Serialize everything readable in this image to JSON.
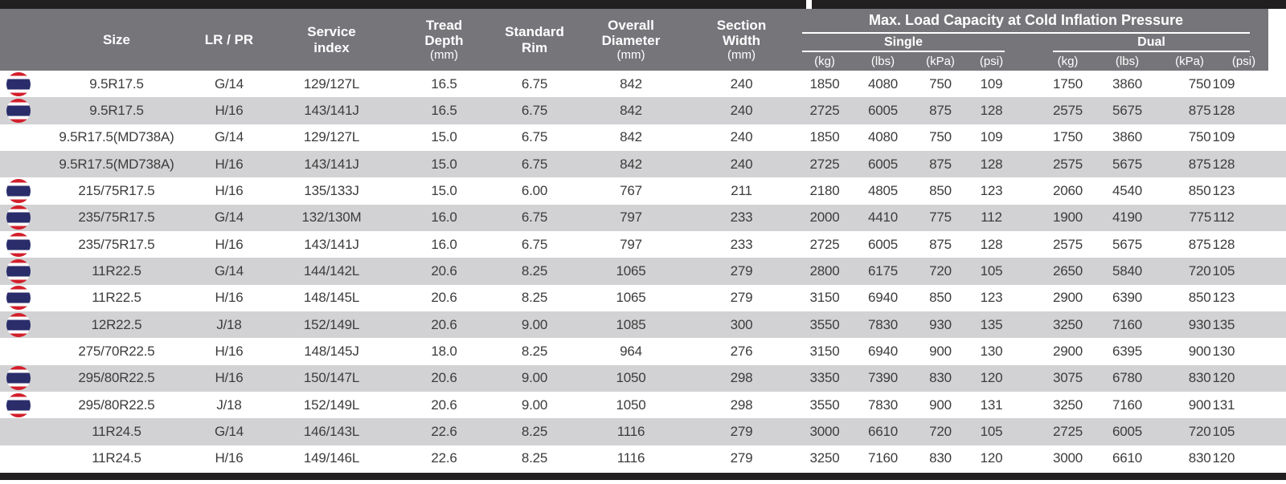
{
  "header": {
    "size": "Size",
    "lr_pr": "LR / PR",
    "service_index": "Service\nindex",
    "tread_depth": "Tread\nDepth",
    "tread_depth_unit": "(mm)",
    "standard_rim": "Standard\nRim",
    "overall_diameter": "Overall\nDiameter",
    "overall_diameter_unit": "(mm)",
    "section_width": "Section\nWidth",
    "section_width_unit": "(mm)",
    "load_title": "Max. Load Capacity at Cold Inflation Pressure",
    "single": "Single",
    "dual": "Dual",
    "units": {
      "kg": "(kg)",
      "lbs": "(lbs)",
      "kpa": "(kPa)",
      "psi": "(psi)"
    }
  },
  "colors": {
    "header_bg": "#76757a",
    "stripe_gray": "#d2d2d4",
    "border_bar": "#221f20",
    "flag_red": "#d21f2b",
    "flag_blue": "#2a2d6a",
    "text": "#3c3c3c"
  },
  "rows": [
    {
      "flag": true,
      "size": "9.5R17.5",
      "lr_pr": "G/14",
      "service_index": "129/127L",
      "tread_depth": "16.5",
      "standard_rim": "6.75",
      "overall_diameter": "842",
      "section_width": "240",
      "single": {
        "kg": "1850",
        "lbs": "4080",
        "kpa": "750",
        "psi": "109"
      },
      "dual": {
        "kg": "1750",
        "lbs": "3860",
        "kpa": "750",
        "psi": "109"
      }
    },
    {
      "flag": true,
      "size": "9.5R17.5",
      "lr_pr": "H/16",
      "service_index": "143/141J",
      "tread_depth": "16.5",
      "standard_rim": "6.75",
      "overall_diameter": "842",
      "section_width": "240",
      "single": {
        "kg": "2725",
        "lbs": "6005",
        "kpa": "875",
        "psi": "128"
      },
      "dual": {
        "kg": "2575",
        "lbs": "5675",
        "kpa": "875",
        "psi": "128"
      }
    },
    {
      "flag": false,
      "size": "9.5R17.5(MD738A)",
      "lr_pr": "G/14",
      "service_index": "129/127L",
      "tread_depth": "15.0",
      "standard_rim": "6.75",
      "overall_diameter": "842",
      "section_width": "240",
      "single": {
        "kg": "1850",
        "lbs": "4080",
        "kpa": "750",
        "psi": "109"
      },
      "dual": {
        "kg": "1750",
        "lbs": "3860",
        "kpa": "750",
        "psi": "109"
      }
    },
    {
      "flag": false,
      "size": "9.5R17.5(MD738A)",
      "lr_pr": "H/16",
      "service_index": "143/141J",
      "tread_depth": "15.0",
      "standard_rim": "6.75",
      "overall_diameter": "842",
      "section_width": "240",
      "single": {
        "kg": "2725",
        "lbs": "6005",
        "kpa": "875",
        "psi": "128"
      },
      "dual": {
        "kg": "2575",
        "lbs": "5675",
        "kpa": "875",
        "psi": "128"
      }
    },
    {
      "flag": true,
      "size": "215/75R17.5",
      "lr_pr": "H/16",
      "service_index": "135/133J",
      "tread_depth": "15.0",
      "standard_rim": "6.00",
      "overall_diameter": "767",
      "section_width": "211",
      "single": {
        "kg": "2180",
        "lbs": "4805",
        "kpa": "850",
        "psi": "123"
      },
      "dual": {
        "kg": "2060",
        "lbs": "4540",
        "kpa": "850",
        "psi": "123"
      }
    },
    {
      "flag": true,
      "size": "235/75R17.5",
      "lr_pr": "G/14",
      "service_index": "132/130M",
      "tread_depth": "16.0",
      "standard_rim": "6.75",
      "overall_diameter": "797",
      "section_width": "233",
      "single": {
        "kg": "2000",
        "lbs": "4410",
        "kpa": "775",
        "psi": "112"
      },
      "dual": {
        "kg": "1900",
        "lbs": "4190",
        "kpa": "775",
        "psi": "112"
      }
    },
    {
      "flag": true,
      "size": "235/75R17.5",
      "lr_pr": "H/16",
      "service_index": "143/141J",
      "tread_depth": "16.0",
      "standard_rim": "6.75",
      "overall_diameter": "797",
      "section_width": "233",
      "single": {
        "kg": "2725",
        "lbs": "6005",
        "kpa": "875",
        "psi": "128"
      },
      "dual": {
        "kg": "2575",
        "lbs": "5675",
        "kpa": "875",
        "psi": "128"
      }
    },
    {
      "flag": true,
      "size": "11R22.5",
      "lr_pr": "G/14",
      "service_index": "144/142L",
      "tread_depth": "20.6",
      "standard_rim": "8.25",
      "overall_diameter": "1065",
      "section_width": "279",
      "single": {
        "kg": "2800",
        "lbs": "6175",
        "kpa": "720",
        "psi": "105"
      },
      "dual": {
        "kg": "2650",
        "lbs": "5840",
        "kpa": "720",
        "psi": "105"
      }
    },
    {
      "flag": true,
      "size": "11R22.5",
      "lr_pr": "H/16",
      "service_index": "148/145L",
      "tread_depth": "20.6",
      "standard_rim": "8.25",
      "overall_diameter": "1065",
      "section_width": "279",
      "single": {
        "kg": "3150",
        "lbs": "6940",
        "kpa": "850",
        "psi": "123"
      },
      "dual": {
        "kg": "2900",
        "lbs": "6390",
        "kpa": "850",
        "psi": "123"
      }
    },
    {
      "flag": true,
      "size": "12R22.5",
      "lr_pr": "J/18",
      "service_index": "152/149L",
      "tread_depth": "20.6",
      "standard_rim": "9.00",
      "overall_diameter": "1085",
      "section_width": "300",
      "single": {
        "kg": "3550",
        "lbs": "7830",
        "kpa": "930",
        "psi": "135"
      },
      "dual": {
        "kg": "3250",
        "lbs": "7160",
        "kpa": "930",
        "psi": "135"
      }
    },
    {
      "flag": false,
      "size": "275/70R22.5",
      "lr_pr": "H/16",
      "service_index": "148/145J",
      "tread_depth": "18.0",
      "standard_rim": "8.25",
      "overall_diameter": "964",
      "section_width": "276",
      "single": {
        "kg": "3150",
        "lbs": "6940",
        "kpa": "900",
        "psi": "130"
      },
      "dual": {
        "kg": "2900",
        "lbs": "6395",
        "kpa": "900",
        "psi": "130"
      }
    },
    {
      "flag": true,
      "size": "295/80R22.5",
      "lr_pr": "H/16",
      "service_index": "150/147L",
      "tread_depth": "20.6",
      "standard_rim": "9.00",
      "overall_diameter": "1050",
      "section_width": "298",
      "single": {
        "kg": "3350",
        "lbs": "7390",
        "kpa": "830",
        "psi": "120"
      },
      "dual": {
        "kg": "3075",
        "lbs": "6780",
        "kpa": "830",
        "psi": "120"
      }
    },
    {
      "flag": true,
      "size": "295/80R22.5",
      "lr_pr": "J/18",
      "service_index": "152/149L",
      "tread_depth": "20.6",
      "standard_rim": "9.00",
      "overall_diameter": "1050",
      "section_width": "298",
      "single": {
        "kg": "3550",
        "lbs": "7830",
        "kpa": "900",
        "psi": "131"
      },
      "dual": {
        "kg": "3250",
        "lbs": "7160",
        "kpa": "900",
        "psi": "131"
      }
    },
    {
      "flag": false,
      "size": "11R24.5",
      "lr_pr": "G/14",
      "service_index": "146/143L",
      "tread_depth": "22.6",
      "standard_rim": "8.25",
      "overall_diameter": "1116",
      "section_width": "279",
      "single": {
        "kg": "3000",
        "lbs": "6610",
        "kpa": "720",
        "psi": "105"
      },
      "dual": {
        "kg": "2725",
        "lbs": "6005",
        "kpa": "720",
        "psi": "105"
      }
    },
    {
      "flag": false,
      "size": "11R24.5",
      "lr_pr": "H/16",
      "service_index": "149/146L",
      "tread_depth": "22.6",
      "standard_rim": "8.25",
      "overall_diameter": "1116",
      "section_width": "279",
      "single": {
        "kg": "3250",
        "lbs": "7160",
        "kpa": "830",
        "psi": "120"
      },
      "dual": {
        "kg": "3000",
        "lbs": "6610",
        "kpa": "830",
        "psi": "120"
      }
    }
  ]
}
